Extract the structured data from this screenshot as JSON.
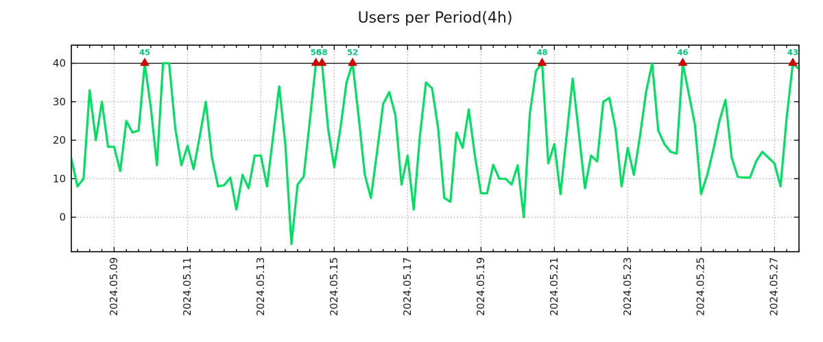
{
  "chart_data": {
    "type": "line",
    "title": "Users per Period(4h)",
    "series_name": "users",
    "period_hours": 4,
    "clip_max": 40,
    "ylim": [
      -9,
      44.75
    ],
    "y_ticks": [
      0,
      10,
      20,
      30,
      40
    ],
    "h_dotted_gridlines": [
      0,
      10,
      20,
      30
    ],
    "y_solid_line": 40,
    "grid": "dotted",
    "legend_position": "none",
    "x_tick_labels": [
      "2024.05.09",
      "2024.05.11",
      "2024.05.13",
      "2024.05.15",
      "2024.05.17",
      "2024.05.19",
      "2024.05.21",
      "2024.05.23",
      "2024.05.25",
      "2024.05.27"
    ],
    "x_major_tick_first_index": 7,
    "x_major_tick_every_periods": 12,
    "x_minor_tick_every_periods": 2,
    "values": [
      15.3,
      8,
      10,
      33,
      20,
      30,
      18.3,
      18.3,
      12,
      25,
      22,
      22.5,
      45,
      28.5,
      13.5,
      40,
      40,
      23,
      13.5,
      18.5,
      12.5,
      21,
      30,
      15.5,
      8,
      8.3,
      10.3,
      2,
      11,
      7.5,
      16,
      16,
      8,
      21,
      34,
      19,
      -7,
      8.5,
      10.5,
      25,
      56,
      58,
      23,
      13,
      23,
      35,
      52,
      26,
      11,
      5,
      17,
      29.5,
      32.5,
      26.5,
      8.5,
      16,
      2,
      21,
      35,
      33.5,
      23,
      5,
      4,
      22,
      18,
      28,
      16,
      6.2,
      6.2,
      13.6,
      10,
      10,
      8.5,
      13.5,
      0,
      27,
      38,
      48,
      14,
      19,
      6,
      21,
      36,
      22,
      7.5,
      16,
      14.5,
      30,
      31,
      23,
      8,
      18,
      11,
      21,
      32.5,
      40,
      22.5,
      19,
      17,
      16.5,
      46,
      32,
      24,
      6,
      11,
      17.5,
      25,
      30.5,
      15.5,
      10.5,
      10.3,
      10.3,
      14.5,
      17,
      15.5,
      14,
      8,
      26,
      43,
      38.5
    ],
    "peak_annotations": [
      {
        "index": 12,
        "label": "45"
      },
      {
        "index": 40,
        "label": "56"
      },
      {
        "index": 41,
        "label": "58"
      },
      {
        "index": 46,
        "label": "52"
      },
      {
        "index": 77,
        "label": "48"
      },
      {
        "index": 100,
        "label": "46"
      },
      {
        "index": 118,
        "label": "43"
      }
    ],
    "colors": {
      "line": "#00e060",
      "peak_label": "#00c87d",
      "marker": "#e00000",
      "grid": "#a8a8a8",
      "axis": "#000000",
      "text": "#1c1c1c"
    }
  }
}
